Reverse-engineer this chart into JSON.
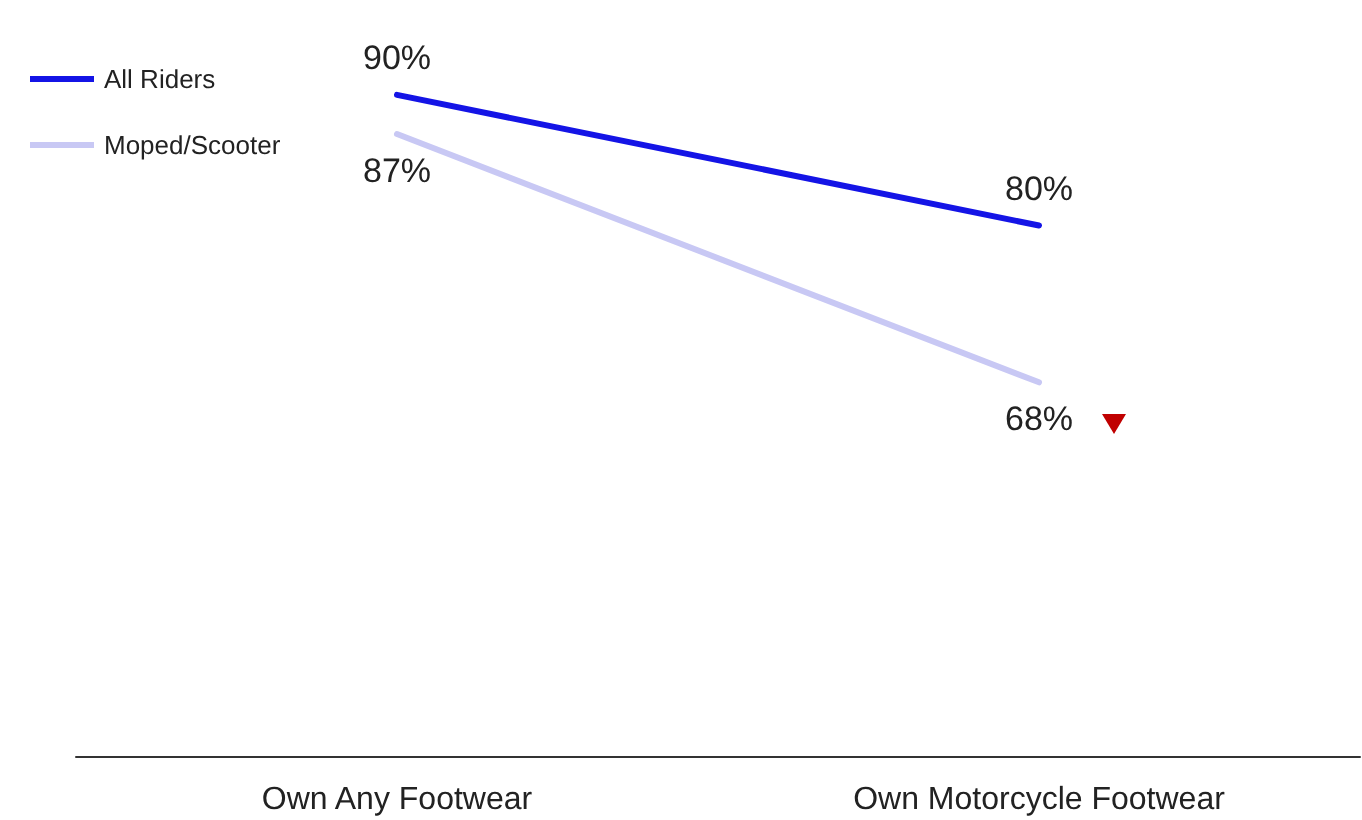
{
  "chart_data": {
    "type": "line",
    "categories": [
      "Own Any Footwear",
      "Own Motorcycle Footwear"
    ],
    "series": [
      {
        "name": "All Riders",
        "color": "#1414e6",
        "values": [
          90,
          80
        ],
        "value_labels": [
          "90%",
          "80%"
        ]
      },
      {
        "name": "Moped/Scooter",
        "color": "#c8c8f4",
        "values": [
          87,
          68
        ],
        "value_labels": [
          "87%",
          "68%"
        ]
      }
    ],
    "legend": "top left",
    "grid": false,
    "tick_labels": "x",
    "marker": "none",
    "line_style": "solid"
  }
}
